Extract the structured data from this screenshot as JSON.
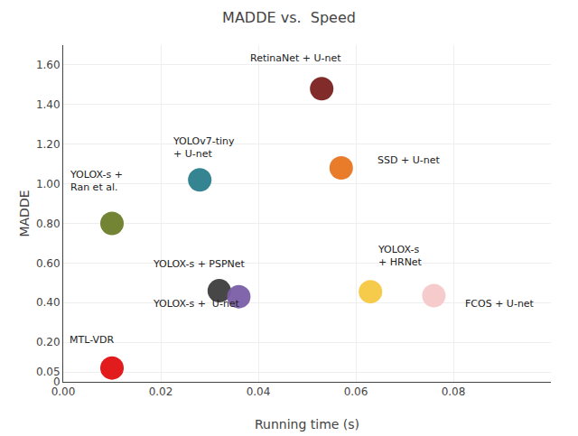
{
  "chart_data": {
    "type": "scatter",
    "title": "MADDE vs.  Speed",
    "xlabel": "Running time (s)",
    "ylabel": "MADDE",
    "x": [
      0.01,
      0.01,
      0.028,
      0.032,
      0.036,
      0.053,
      0.057,
      0.063,
      0.076
    ],
    "values": [
      0.07,
      0.8,
      1.02,
      0.46,
      0.43,
      1.48,
      1.08,
      0.455,
      0.435
    ],
    "colors": [
      "#e01010",
      "#6b7e2a",
      "#2a7d8c",
      "#3d3d3d",
      "#7b5ea7",
      "#7b2020",
      "#e87520",
      "#f5c842",
      "#f5c8c8"
    ],
    "xlim": [
      0,
      0.1
    ],
    "ylim": [
      0,
      1.7
    ],
    "xticks": [
      {
        "value": 0,
        "label": "0.00"
      },
      0.02,
      0.04,
      0.06,
      0.08
    ],
    "yticks": [
      0,
      0.05,
      {
        "value": 0.2,
        "label": "0.20"
      },
      {
        "value": 0.4,
        "label": "0.40"
      },
      {
        "value": 0.6,
        "label": "0.60"
      },
      {
        "value": 0.8,
        "label": "0.80"
      },
      {
        "value": 1.0,
        "label": "1.00"
      },
      {
        "value": 1.2,
        "label": "1.20"
      },
      {
        "value": 1.4,
        "label": "1.40"
      },
      {
        "value": 1.6,
        "label": "1.60"
      }
    ],
    "grid": true,
    "annotations": [
      {
        "text": "MTL-VDR",
        "x": 0.001,
        "y": 0.175
      },
      {
        "text": "YOLOX-s +\nRan et al.",
        "x": 0.001,
        "y": 0.945
      },
      {
        "text": "YOLOv7-tiny\n+ U-net",
        "x": 0.022,
        "y": 1.11
      },
      {
        "text": "YOLOX-s + PSPNet",
        "x": 0.018,
        "y": 0.555
      },
      {
        "text": "YOLOX-s +  U-net",
        "x": 0.018,
        "y": 0.355
      },
      {
        "text": "RetinaNet + U-net",
        "x": 0.038,
        "y": 1.595
      },
      {
        "text": "SSD + U-net",
        "x": 0.064,
        "y": 1.08
      },
      {
        "text": "YOLOX-s\n+ HRNet",
        "x": 0.064,
        "y": 0.565
      },
      {
        "text": "FCOS + U-net",
        "x": 0.082,
        "y": 0.355
      }
    ]
  }
}
